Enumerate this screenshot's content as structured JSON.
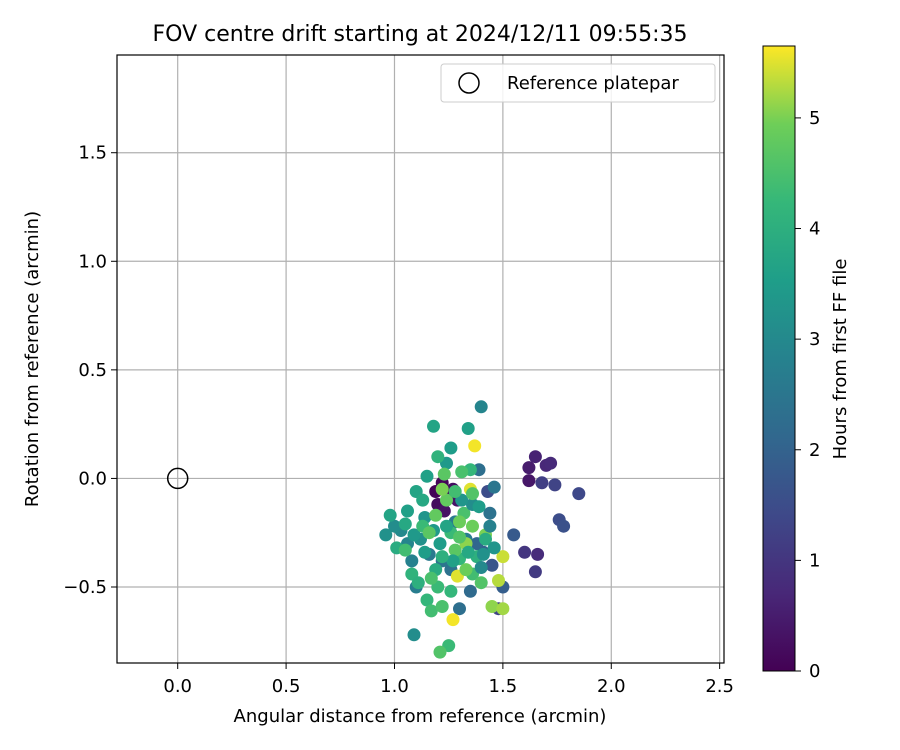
{
  "chart_data": {
    "type": "scatter",
    "title": "FOV centre drift starting at 2024/12/11 09:55:35",
    "xlabel": "Angular distance from reference (arcmin)",
    "ylabel": "Rotation from reference (arcmin)",
    "xlim": [
      -0.28,
      2.52
    ],
    "ylim": [
      -0.85,
      1.95
    ],
    "xticks": [
      0.0,
      0.5,
      1.0,
      1.5,
      2.0,
      2.5
    ],
    "xtick_labels": [
      "0.0",
      "0.5",
      "1.0",
      "1.5",
      "2.0",
      "2.5"
    ],
    "yticks": [
      -0.5,
      0.0,
      0.5,
      1.0,
      1.5
    ],
    "ytick_labels": [
      "−0.5",
      "0.0",
      "0.5",
      "1.0",
      "1.5"
    ],
    "grid": true,
    "legend": {
      "placement": "top-right",
      "entries": [
        "Reference platepar"
      ]
    },
    "reference_point": {
      "x": 0.0,
      "y": 0.0
    },
    "colorbar": {
      "label": "Hours from first FF file",
      "colormap": "viridis",
      "range": [
        0,
        5.65
      ],
      "ticks": [
        0,
        1,
        2,
        3,
        4,
        5
      ],
      "tick_labels": [
        "0",
        "1",
        "2",
        "3",
        "4",
        "5"
      ]
    },
    "points": [
      [
        1.19,
        -0.06,
        0.05
      ],
      [
        1.22,
        -0.02,
        0.1
      ],
      [
        1.25,
        -0.08,
        0.15
      ],
      [
        1.2,
        -0.12,
        0.2
      ],
      [
        1.27,
        -0.05,
        0.25
      ],
      [
        1.23,
        -0.15,
        0.3
      ],
      [
        1.29,
        -0.1,
        0.35
      ],
      [
        1.62,
        -0.01,
        0.4
      ],
      [
        1.62,
        0.05,
        0.5
      ],
      [
        1.65,
        0.1,
        0.6
      ],
      [
        1.7,
        0.06,
        0.7
      ],
      [
        1.72,
        0.07,
        0.75
      ],
      [
        1.66,
        -0.35,
        0.8
      ],
      [
        1.6,
        -0.34,
        1.0
      ],
      [
        1.65,
        -0.43,
        1.1
      ],
      [
        1.68,
        -0.02,
        1.2
      ],
      [
        1.74,
        -0.03,
        1.3
      ],
      [
        1.85,
        -0.07,
        1.4
      ],
      [
        1.76,
        -0.19,
        1.5
      ],
      [
        1.78,
        -0.22,
        1.6
      ],
      [
        1.48,
        -0.6,
        1.3
      ],
      [
        1.43,
        -0.06,
        1.5
      ],
      [
        1.55,
        -0.26,
        1.8
      ],
      [
        1.5,
        -0.5,
        1.9
      ],
      [
        1.45,
        -0.4,
        1.7
      ],
      [
        1.41,
        -0.34,
        2.0
      ],
      [
        1.38,
        -0.3,
        2.1
      ],
      [
        1.35,
        -0.52,
        2.2
      ],
      [
        1.3,
        -0.6,
        2.3
      ],
      [
        1.26,
        -0.42,
        2.4
      ],
      [
        1.22,
        -0.38,
        2.5
      ],
      [
        1.16,
        -0.35,
        2.6
      ],
      [
        1.1,
        -0.5,
        2.7
      ],
      [
        1.08,
        -0.38,
        2.8
      ],
      [
        1.06,
        -0.3,
        2.9
      ],
      [
        1.03,
        -0.24,
        3.0
      ],
      [
        1.0,
        -0.22,
        3.1
      ],
      [
        0.96,
        -0.26,
        3.2
      ],
      [
        1.09,
        -0.72,
        3.1
      ],
      [
        1.4,
        0.33,
        2.9
      ],
      [
        1.46,
        -0.04,
        2.5
      ],
      [
        1.39,
        0.04,
        2.3
      ],
      [
        1.28,
        -0.2,
        2.6
      ],
      [
        1.33,
        -0.28,
        2.7
      ],
      [
        1.44,
        -0.16,
        2.4
      ],
      [
        1.14,
        -0.18,
        3.3
      ],
      [
        1.18,
        -0.24,
        3.4
      ],
      [
        1.21,
        -0.3,
        3.5
      ],
      [
        1.12,
        -0.28,
        3.2
      ],
      [
        1.24,
        0.07,
        3.4
      ],
      [
        1.34,
        0.23,
        3.6
      ],
      [
        1.26,
        0.14,
        3.5
      ],
      [
        1.18,
        0.24,
        3.7
      ],
      [
        1.15,
        0.01,
        3.6
      ],
      [
        1.1,
        -0.06,
        3.7
      ],
      [
        1.13,
        -0.1,
        3.8
      ],
      [
        0.98,
        -0.17,
        3.7
      ],
      [
        1.01,
        -0.32,
        3.9
      ],
      [
        1.05,
        -0.21,
        3.8
      ],
      [
        1.08,
        -0.44,
        4.1
      ],
      [
        1.11,
        -0.48,
        4.0
      ],
      [
        1.15,
        -0.56,
        4.2
      ],
      [
        1.2,
        -0.5,
        4.3
      ],
      [
        1.17,
        -0.61,
        4.4
      ],
      [
        1.22,
        -0.59,
        4.5
      ],
      [
        1.25,
        -0.77,
        4.3
      ],
      [
        1.21,
        -0.8,
        4.6
      ],
      [
        1.3,
        -0.37,
        4.2
      ],
      [
        1.36,
        -0.44,
        4.4
      ],
      [
        1.4,
        -0.48,
        4.6
      ],
      [
        1.35,
        0.04,
        4.2
      ],
      [
        1.2,
        0.1,
        4.1
      ],
      [
        1.26,
        -0.25,
        4.3
      ],
      [
        1.32,
        -0.16,
        4.5
      ],
      [
        1.28,
        -0.33,
        4.7
      ],
      [
        1.24,
        -0.1,
        4.8
      ],
      [
        1.36,
        -0.22,
        4.9
      ],
      [
        1.42,
        -0.26,
        5.0
      ],
      [
        1.45,
        -0.59,
        5.1
      ],
      [
        1.5,
        -0.6,
        5.2
      ],
      [
        1.48,
        -0.47,
        5.3
      ],
      [
        1.5,
        -0.36,
        5.4
      ],
      [
        1.37,
        0.15,
        5.6
      ],
      [
        1.27,
        -0.65,
        5.6
      ],
      [
        1.35,
        -0.05,
        5.5
      ],
      [
        1.29,
        -0.45,
        5.5
      ],
      [
        1.33,
        -0.3,
        5.1
      ],
      [
        1.22,
        -0.05,
        5.0
      ],
      [
        1.3,
        -0.2,
        4.9
      ],
      [
        1.42,
        -0.28,
        3.9
      ],
      [
        1.38,
        -0.36,
        4.0
      ],
      [
        1.46,
        -0.32,
        3.3
      ],
      [
        1.4,
        -0.41,
        3.0
      ],
      [
        1.44,
        -0.22,
        2.8
      ],
      [
        1.36,
        -0.12,
        3.1
      ],
      [
        1.31,
        -0.1,
        3.3
      ],
      [
        1.27,
        -0.38,
        3.6
      ],
      [
        1.19,
        -0.42,
        3.9
      ],
      [
        1.14,
        -0.34,
        3.5
      ],
      [
        1.09,
        -0.26,
        3.4
      ],
      [
        1.06,
        -0.15,
        3.6
      ],
      [
        1.24,
        -0.22,
        3.7
      ],
      [
        1.34,
        -0.34,
        3.8
      ],
      [
        1.39,
        -0.13,
        3.5
      ],
      [
        1.17,
        -0.46,
        4.5
      ],
      [
        1.26,
        -0.52,
        4.2
      ],
      [
        1.3,
        -0.27,
        4.6
      ],
      [
        1.22,
        -0.36,
        4.0
      ],
      [
        1.13,
        -0.22,
        4.3
      ],
      [
        1.05,
        -0.33,
        4.4
      ],
      [
        1.16,
        -0.25,
        4.7
      ],
      [
        1.19,
        -0.17,
        4.8
      ],
      [
        1.33,
        -0.42,
        4.9
      ],
      [
        1.41,
        -0.35,
        3.2
      ],
      [
        1.28,
        -0.06,
        4.4
      ],
      [
        1.31,
        0.03,
        4.5
      ],
      [
        1.36,
        -0.07,
        4.6
      ],
      [
        1.23,
        0.02,
        4.7
      ]
    ]
  }
}
